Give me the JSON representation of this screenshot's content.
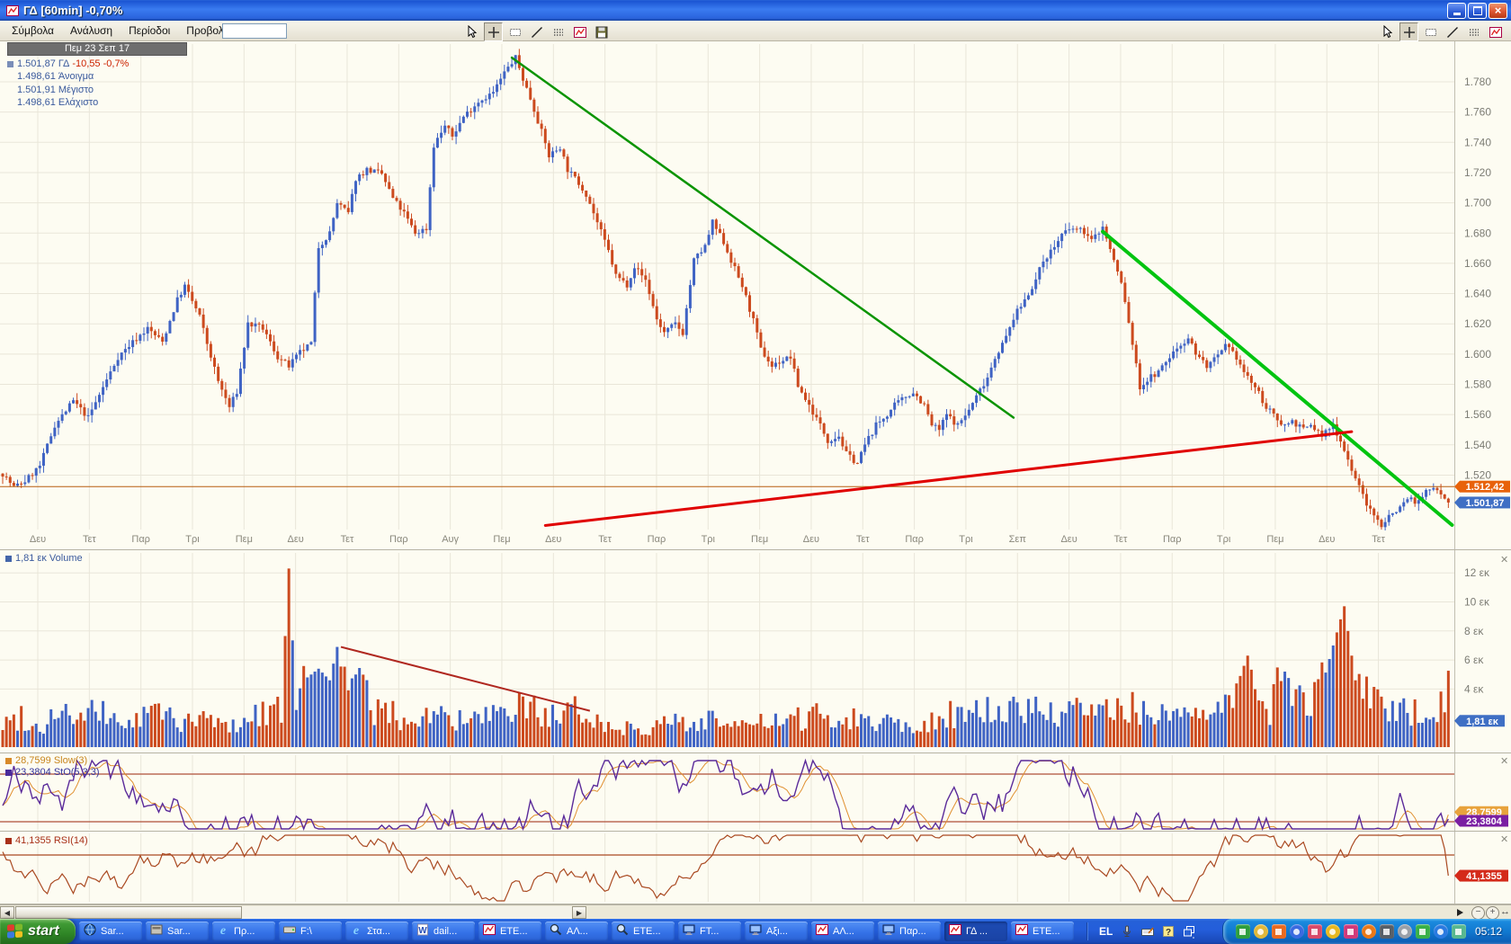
{
  "window": {
    "title": "ΓΔ [60min] -0,70%",
    "menus": [
      "Σύμβολα",
      "Ανάλυση",
      "Περίοδοι",
      "Προβολή"
    ],
    "symbol_input_value": "",
    "toolbar_icons": [
      "cursor",
      "crosshair",
      "textbox",
      "trendline",
      "dots",
      "chart",
      "save"
    ],
    "toolbar_pressed": "crosshair"
  },
  "info_panel": {
    "date_header": "Πεμ 23 Σεπ 17",
    "last": "1.501,87",
    "symbol": "ΓΔ",
    "change": "-10,55 -0,7%",
    "open": "1.498,61",
    "open_label": "Άνοιγμα",
    "high": "1.501,91",
    "high_label": "Μέγιστο",
    "low": "1.498,61",
    "low_label": "Ελάχιστο"
  },
  "volume_panel": {
    "header": "1,81 εκ Volume",
    "tag": "1,81 εκ"
  },
  "stoch_panel": {
    "line1": "28,7599 Slow(3)",
    "line2": "23,3804 StO(5,3,3)",
    "tag_fast": "23,3804",
    "tag_slow": "28,7599"
  },
  "rsi_panel": {
    "header": "41,1355 RSI(14)",
    "tag": "41,1355"
  },
  "colors": {
    "candle_up": "#3f63c4",
    "candle_down": "#cc4a1e",
    "trend_green_1": "#0a9400",
    "trend_green_2": "#00c410",
    "trend_red": "#e00000",
    "hline": "#b85c10",
    "tag_hline": "#e8620a",
    "tag_last": "#3f6fc4",
    "tag_volume": "#3f6fc4",
    "tag_stoch_fast": "#7a1fa2",
    "tag_stoch_slow": "#e8a33d",
    "tag_rsi": "#d42a1a",
    "stoch_fast": "#5a2a9a",
    "stoch_slow": "#e09030",
    "stoch_level": "#b0503a",
    "rsi_line": "#aa4a22",
    "grid": "#e9e6d9"
  },
  "chart_data": [
    {
      "type": "candlestick",
      "symbol": "ΓΔ",
      "period": "60min",
      "last_close": 1.50187,
      "change_pct": -0.7,
      "open": 1.49861,
      "high": 1.50191,
      "low": 1.49861,
      "bars": 390,
      "y_ticks": [
        {
          "v": 1.78,
          "label": "1.780"
        },
        {
          "v": 1.76,
          "label": "1.760"
        },
        {
          "v": 1.74,
          "label": "1.740"
        },
        {
          "v": 1.72,
          "label": "1.720"
        },
        {
          "v": 1.7,
          "label": "1.700"
        },
        {
          "v": 1.68,
          "label": "1.680"
        },
        {
          "v": 1.66,
          "label": "1.660"
        },
        {
          "v": 1.64,
          "label": "1.640"
        },
        {
          "v": 1.62,
          "label": "1.620"
        },
        {
          "v": 1.6,
          "label": "1.600"
        },
        {
          "v": 1.58,
          "label": "1.580"
        },
        {
          "v": 1.56,
          "label": "1.560"
        },
        {
          "v": 1.54,
          "label": "1.540"
        },
        {
          "v": 1.52,
          "label": "1.520"
        }
      ],
      "x_labels": [
        "Δευ",
        "Τετ",
        "Παρ",
        "Τρι",
        "Πεμ",
        "Δευ",
        "Τετ",
        "Παρ",
        "Αυγ",
        "Πεμ",
        "Δευ",
        "Τετ",
        "Παρ",
        "Τρι",
        "Πεμ",
        "Δευ",
        "Τετ",
        "Παρ",
        "Τρι",
        "Σεπ",
        "Δευ",
        "Τετ",
        "Παρ",
        "Τρι",
        "Πεμ",
        "Δευ",
        "Τετ"
      ],
      "close_path": [
        [
          0,
          1.521
        ],
        [
          3,
          1.512
        ],
        [
          6,
          1.516
        ],
        [
          10,
          1.526
        ],
        [
          14,
          1.553
        ],
        [
          19,
          1.569
        ],
        [
          23,
          1.558
        ],
        [
          27,
          1.578
        ],
        [
          31,
          1.598
        ],
        [
          35,
          1.608
        ],
        [
          39,
          1.617
        ],
        [
          43,
          1.608
        ],
        [
          47,
          1.636
        ],
        [
          49,
          1.645
        ],
        [
          53,
          1.625
        ],
        [
          55,
          1.607
        ],
        [
          58,
          1.582
        ],
        [
          61,
          1.565
        ],
        [
          63,
          1.575
        ],
        [
          66,
          1.62
        ],
        [
          70,
          1.617
        ],
        [
          74,
          1.598
        ],
        [
          77,
          1.592
        ],
        [
          80,
          1.601
        ],
        [
          83,
          1.607
        ],
        [
          85,
          1.671
        ],
        [
          88,
          1.68
        ],
        [
          90,
          1.7
        ],
        [
          93,
          1.693
        ],
        [
          95,
          1.716
        ],
        [
          98,
          1.722
        ],
        [
          102,
          1.719
        ],
        [
          105,
          1.703
        ],
        [
          108,
          1.693
        ],
        [
          111,
          1.68
        ],
        [
          114,
          1.683
        ],
        [
          116,
          1.738
        ],
        [
          119,
          1.751
        ],
        [
          121,
          1.744
        ],
        [
          124,
          1.757
        ],
        [
          128,
          1.767
        ],
        [
          132,
          1.773
        ],
        [
          135,
          1.786
        ],
        [
          138,
          1.796
        ],
        [
          140,
          1.782
        ],
        [
          142,
          1.769
        ],
        [
          145,
          1.747
        ],
        [
          147,
          1.731
        ],
        [
          150,
          1.737
        ],
        [
          152,
          1.722
        ],
        [
          155,
          1.713
        ],
        [
          157,
          1.706
        ],
        [
          160,
          1.687
        ],
        [
          163,
          1.668
        ],
        [
          165,
          1.652
        ],
        [
          168,
          1.646
        ],
        [
          170,
          1.658
        ],
        [
          173,
          1.649
        ],
        [
          176,
          1.623
        ],
        [
          178,
          1.614
        ],
        [
          181,
          1.62
        ],
        [
          183,
          1.614
        ],
        [
          186,
          1.662
        ],
        [
          189,
          1.671
        ],
        [
          191,
          1.687
        ],
        [
          194,
          1.674
        ],
        [
          196,
          1.662
        ],
        [
          199,
          1.645
        ],
        [
          202,
          1.622
        ],
        [
          204,
          1.603
        ],
        [
          207,
          1.592
        ],
        [
          209,
          1.595
        ],
        [
          212,
          1.598
        ],
        [
          214,
          1.579
        ],
        [
          217,
          1.566
        ],
        [
          220,
          1.553
        ],
        [
          222,
          1.543
        ],
        [
          225,
          1.546
        ],
        [
          227,
          1.534
        ],
        [
          230,
          1.528
        ],
        [
          232,
          1.54
        ],
        [
          235,
          1.553
        ],
        [
          238,
          1.56
        ],
        [
          240,
          1.566
        ],
        [
          243,
          1.572
        ],
        [
          245,
          1.575
        ],
        [
          248,
          1.566
        ],
        [
          250,
          1.553
        ],
        [
          252,
          1.55
        ],
        [
          254,
          1.56
        ],
        [
          257,
          1.553
        ],
        [
          260,
          1.563
        ],
        [
          262,
          1.572
        ],
        [
          265,
          1.585
        ],
        [
          267,
          1.598
        ],
        [
          270,
          1.611
        ],
        [
          272,
          1.624
        ],
        [
          275,
          1.636
        ],
        [
          278,
          1.649
        ],
        [
          280,
          1.662
        ],
        [
          283,
          1.671
        ],
        [
          285,
          1.679
        ],
        [
          288,
          1.683
        ],
        [
          291,
          1.681
        ],
        [
          293,
          1.675
        ],
        [
          296,
          1.684
        ],
        [
          298,
          1.669
        ],
        [
          301,
          1.647
        ],
        [
          303,
          1.621
        ],
        [
          306,
          1.578
        ],
        [
          309,
          1.585
        ],
        [
          311,
          1.588
        ],
        [
          314,
          1.598
        ],
        [
          316,
          1.604
        ],
        [
          319,
          1.611
        ],
        [
          321,
          1.601
        ],
        [
          324,
          1.592
        ],
        [
          327,
          1.598
        ],
        [
          329,
          1.605
        ],
        [
          332,
          1.598
        ],
        [
          334,
          1.588
        ],
        [
          337,
          1.578
        ],
        [
          340,
          1.565
        ],
        [
          342,
          1.559
        ],
        [
          345,
          1.553
        ],
        [
          347,
          1.556
        ],
        [
          350,
          1.55
        ],
        [
          352,
          1.553
        ],
        [
          355,
          1.546
        ],
        [
          358,
          1.553
        ],
        [
          360,
          1.543
        ],
        [
          363,
          1.524
        ],
        [
          365,
          1.512
        ],
        [
          368,
          1.496
        ],
        [
          371,
          1.487
        ],
        [
          373,
          1.493
        ],
        [
          376,
          1.499
        ],
        [
          378,
          1.505
        ],
        [
          381,
          1.502
        ],
        [
          383,
          1.509
        ],
        [
          386,
          1.512
        ],
        [
          389,
          1.502
        ]
      ],
      "trendlines": [
        {
          "name": "descending-resistance-1",
          "color": "#0a9400",
          "width": 2.5,
          "from": [
            137,
            1.796
          ],
          "to": [
            272,
            1.558
          ]
        },
        {
          "name": "descending-resistance-2",
          "color": "#00c410",
          "width": 4,
          "from": [
            296,
            1.681
          ],
          "to": [
            390,
            1.487
          ]
        },
        {
          "name": "ascending-support",
          "color": "#e00000",
          "width": 3,
          "from": [
            146,
            1.4867
          ],
          "to": [
            363,
            1.5487
          ]
        }
      ],
      "hline": {
        "price": 1.51242,
        "label": "1.512,42"
      },
      "last_label": "1.501,87"
    },
    {
      "type": "bar",
      "name": "Volume",
      "unit": "εκ",
      "current": 1.81,
      "current_label": "1,81 εκ",
      "y_ticks": [
        {
          "v": 12,
          "label": "12 εκ"
        },
        {
          "v": 10,
          "label": "10 εκ"
        },
        {
          "v": 8,
          "label": "8 εκ"
        },
        {
          "v": 6,
          "label": "6 εκ"
        },
        {
          "v": 4,
          "label": "4 εκ"
        }
      ],
      "volume_path": [
        [
          0,
          1.5
        ],
        [
          5,
          2.2
        ],
        [
          10,
          1.2
        ],
        [
          15,
          2.8
        ],
        [
          20,
          1.8
        ],
        [
          25,
          2.4
        ],
        [
          30,
          2.0
        ],
        [
          35,
          1.5
        ],
        [
          40,
          2.6
        ],
        [
          45,
          2.2
        ],
        [
          50,
          1.6
        ],
        [
          55,
          2.0
        ],
        [
          60,
          1.4
        ],
        [
          65,
          1.8
        ],
        [
          70,
          2.5
        ],
        [
          75,
          3.0
        ],
        [
          77,
          12.3
        ],
        [
          79,
          2.4
        ],
        [
          82,
          4.8
        ],
        [
          85,
          5.4
        ],
        [
          88,
          4.6
        ],
        [
          90,
          6.9
        ],
        [
          92,
          4.2
        ],
        [
          95,
          5.0
        ],
        [
          98,
          3.4
        ],
        [
          100,
          2.6
        ],
        [
          105,
          2.2
        ],
        [
          110,
          1.8
        ],
        [
          115,
          2.4
        ],
        [
          120,
          2.0
        ],
        [
          125,
          1.6
        ],
        [
          130,
          2.2
        ],
        [
          135,
          1.9
        ],
        [
          140,
          3.0
        ],
        [
          145,
          2.4
        ],
        [
          150,
          1.8
        ],
        [
          155,
          2.6
        ],
        [
          158,
          2.4
        ],
        [
          162,
          1.5
        ],
        [
          166,
          1.2
        ],
        [
          170,
          1.6
        ],
        [
          175,
          1.3
        ],
        [
          180,
          1.8
        ],
        [
          185,
          1.4
        ],
        [
          190,
          2.2
        ],
        [
          195,
          1.6
        ],
        [
          200,
          1.3
        ],
        [
          205,
          1.8
        ],
        [
          210,
          1.5
        ],
        [
          215,
          2.0
        ],
        [
          220,
          2.4
        ],
        [
          225,
          1.8
        ],
        [
          230,
          2.2
        ],
        [
          235,
          1.6
        ],
        [
          240,
          2.0
        ],
        [
          245,
          1.4
        ],
        [
          250,
          1.8
        ],
        [
          255,
          2.4
        ],
        [
          260,
          2.0
        ],
        [
          265,
          2.6
        ],
        [
          270,
          2.2
        ],
        [
          275,
          3.0
        ],
        [
          280,
          2.4
        ],
        [
          285,
          2.0
        ],
        [
          290,
          2.6
        ],
        [
          295,
          2.2
        ],
        [
          300,
          3.2
        ],
        [
          305,
          2.6
        ],
        [
          310,
          2.0
        ],
        [
          315,
          2.4
        ],
        [
          320,
          1.8
        ],
        [
          325,
          2.2
        ],
        [
          330,
          2.8
        ],
        [
          335,
          6.3
        ],
        [
          338,
          3.4
        ],
        [
          341,
          2.6
        ],
        [
          345,
          5.2
        ],
        [
          350,
          3.0
        ],
        [
          355,
          4.2
        ],
        [
          358,
          7.0
        ],
        [
          361,
          9.7
        ],
        [
          364,
          4.6
        ],
        [
          368,
          3.2
        ],
        [
          372,
          2.6
        ],
        [
          376,
          2.2
        ],
        [
          380,
          2.8
        ],
        [
          384,
          2.0
        ],
        [
          388,
          3.4
        ]
      ],
      "trendline": {
        "name": "volume-downtrend",
        "color": "#b02820",
        "width": 2,
        "from": [
          91,
          6.9
        ],
        "to": [
          158,
          2.5
        ]
      }
    },
    {
      "type": "line",
      "name": "Stochastic",
      "fast": {
        "label": "StO(5,3,3)",
        "value": 23.3804
      },
      "slow": {
        "label": "Slow(3)",
        "value": 28.7599
      },
      "levels": [
        80,
        20
      ],
      "range": [
        0,
        100
      ]
    },
    {
      "type": "line",
      "name": "RSI",
      "label": "RSI(14)",
      "value": 41.1355,
      "levels": [
        50
      ],
      "range": [
        0,
        100
      ]
    }
  ],
  "scrollbar": {
    "left_arrow": "◀",
    "right_arrow": "▶",
    "zoom_out": "−",
    "zoom_in": "+",
    "fit": "↔"
  },
  "taskbar": {
    "start_label": "start",
    "buttons": [
      {
        "label": "Sar...",
        "icon": "globe"
      },
      {
        "label": "Sar...",
        "icon": "app"
      },
      {
        "label": "Πρ...",
        "icon": "ie"
      },
      {
        "label": "F:\\",
        "icon": "drive"
      },
      {
        "label": "Στα...",
        "icon": "ie"
      },
      {
        "label": "dail...",
        "icon": "word"
      },
      {
        "label": "ΕΤΕ...",
        "icon": "chart"
      },
      {
        "label": "ΑΛ...",
        "icon": "magnifier"
      },
      {
        "label": "ΕΤΕ...",
        "icon": "magnifier"
      },
      {
        "label": "FT...",
        "icon": "monitor"
      },
      {
        "label": "Αξι...",
        "icon": "monitor"
      },
      {
        "label": "ΑΛ...",
        "icon": "chart"
      },
      {
        "label": "Παρ...",
        "icon": "monitor"
      },
      {
        "label": "ΓΔ ...",
        "icon": "chart",
        "active": true
      },
      {
        "label": "ΕΤΕ...",
        "icon": "chart"
      }
    ],
    "language": "EL",
    "lang_icons": [
      "microphone",
      "keyboard-pen",
      "help",
      "restore-window"
    ],
    "tray_icons": [
      {
        "name": "network-icon",
        "color": "#2e9e3e"
      },
      {
        "name": "mail-icon",
        "color": "#e0b83a"
      },
      {
        "name": "java-icon",
        "color": "#e86a20"
      },
      {
        "name": "display-icon",
        "color": "#3a6ae0"
      },
      {
        "name": "alert-icon",
        "color": "#d84a6a"
      },
      {
        "name": "shield-icon",
        "color": "#e8b820"
      },
      {
        "name": "heart-icon",
        "color": "#d03a7a"
      },
      {
        "name": "warning-icon",
        "color": "#e87818"
      },
      {
        "name": "binoculars-icon",
        "color": "#586068"
      },
      {
        "name": "speaker-icon",
        "color": "#9aa0a8"
      },
      {
        "name": "ring-icon",
        "color": "#38b048"
      },
      {
        "name": "messenger-icon",
        "color": "#2a7ae0"
      },
      {
        "name": "eye-icon",
        "color": "#58b890"
      }
    ],
    "time": "05:12"
  }
}
